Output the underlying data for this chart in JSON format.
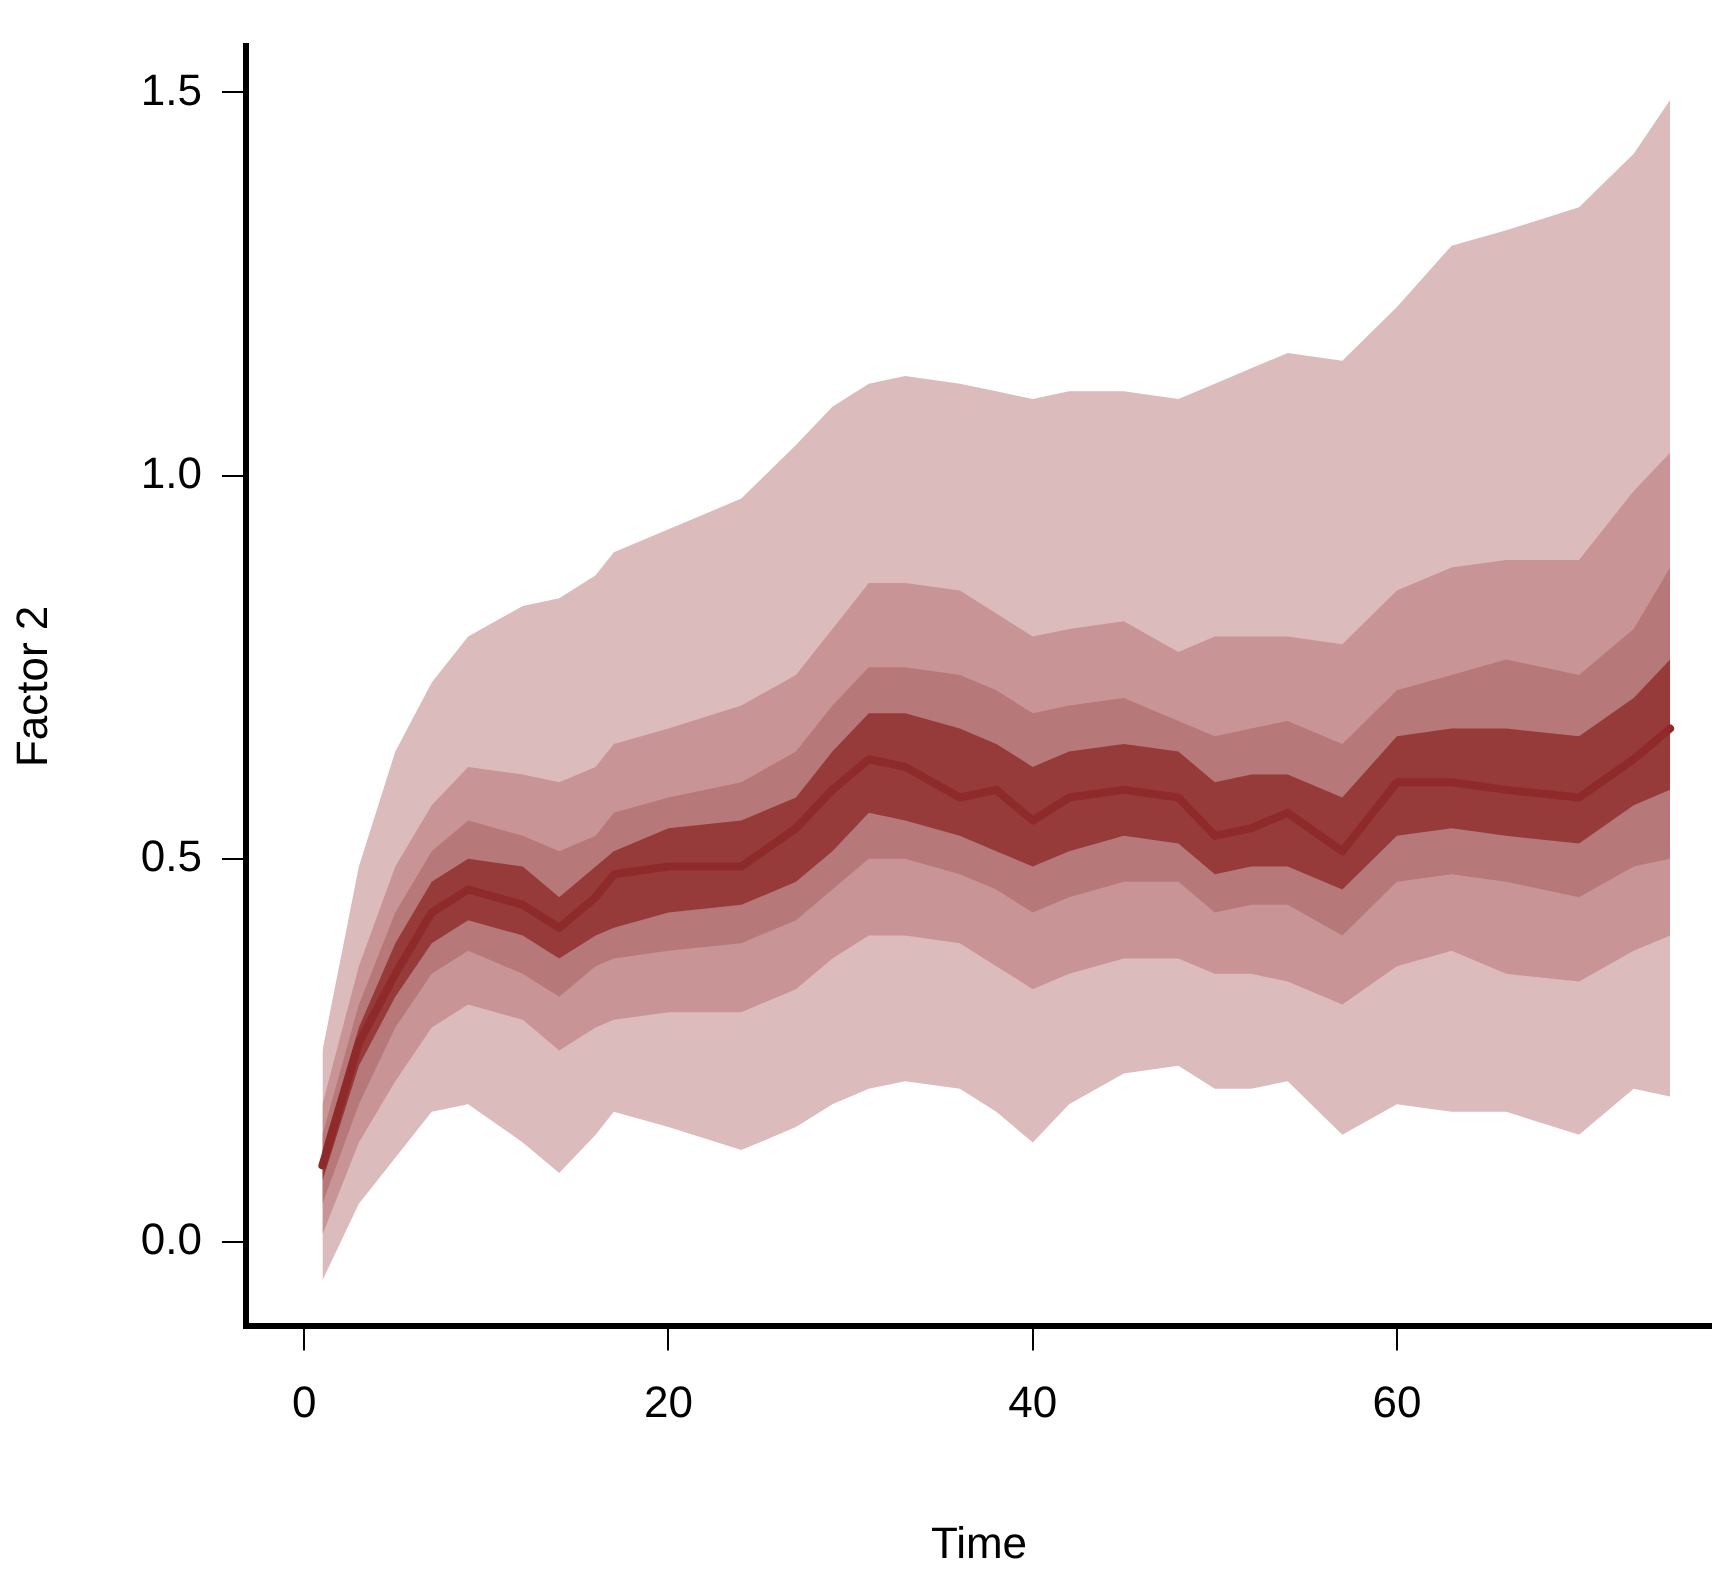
{
  "chart_data": {
    "type": "line",
    "xlabel": "Time",
    "ylabel": "Factor 2",
    "xlim": [
      -3.2,
      77.3
    ],
    "ylim": [
      -0.11,
      1.56
    ],
    "xticks": [
      0,
      20,
      40,
      60
    ],
    "yticks": [
      {
        "value": 0,
        "label": "0.0"
      },
      {
        "value": 0.5,
        "label": "0.5"
      },
      {
        "value": 1,
        "label": "1.0"
      },
      {
        "value": 1.5,
        "label": "1.5"
      }
    ],
    "x": [
      1,
      3,
      5,
      7,
      9,
      12,
      14,
      16,
      17,
      20,
      24,
      27,
      29,
      31,
      33,
      36,
      38,
      40,
      42,
      45,
      48,
      50,
      52,
      54,
      57,
      60,
      63,
      66,
      70,
      73,
      75
    ],
    "series": [
      {
        "color": "#8e2a2a",
        "values": [
          0.1,
          0.26,
          0.35,
          0.43,
          0.46,
          0.44,
          0.41,
          0.45,
          0.48,
          0.49,
          0.49,
          0.54,
          0.59,
          0.63,
          0.62,
          0.58,
          0.59,
          0.55,
          0.58,
          0.59,
          0.58,
          0.53,
          0.54,
          0.56,
          0.51,
          0.6,
          0.6,
          0.59,
          0.58,
          0.63,
          0.67
        ],
        "upper": [
          0.12,
          0.28,
          0.39,
          0.47,
          0.5,
          0.49,
          0.45,
          0.49,
          0.51,
          0.54,
          0.55,
          0.58,
          0.64,
          0.69,
          0.69,
          0.67,
          0.65,
          0.62,
          0.64,
          0.65,
          0.64,
          0.6,
          0.61,
          0.61,
          0.58,
          0.66,
          0.67,
          0.67,
          0.66,
          0.71,
          0.76
        ],
        "lower": [
          0.08,
          0.23,
          0.32,
          0.39,
          0.42,
          0.4,
          0.37,
          0.4,
          0.41,
          0.43,
          0.44,
          0.47,
          0.51,
          0.56,
          0.55,
          0.53,
          0.51,
          0.49,
          0.51,
          0.53,
          0.52,
          0.48,
          0.49,
          0.49,
          0.46,
          0.53,
          0.54,
          0.53,
          0.52,
          0.57,
          0.59
        ]
      },
      {
        "color": "#b77879",
        "values": [
          null,
          null,
          null,
          null,
          null,
          null,
          null,
          null,
          null,
          null,
          null,
          null,
          null,
          null,
          null,
          null,
          null,
          null,
          null,
          null,
          null,
          null,
          null,
          null,
          null,
          null,
          null,
          null,
          null,
          null,
          null
        ],
        "upper": [
          0.14,
          0.31,
          0.43,
          0.51,
          0.55,
          0.53,
          0.51,
          0.53,
          0.56,
          0.58,
          0.6,
          0.64,
          0.7,
          0.75,
          0.75,
          0.74,
          0.72,
          0.69,
          0.7,
          0.71,
          0.68,
          0.66,
          0.67,
          0.68,
          0.65,
          0.72,
          0.74,
          0.76,
          0.74,
          0.8,
          0.88
        ],
        "lower": [
          0.05,
          0.18,
          0.28,
          0.35,
          0.38,
          0.35,
          0.32,
          0.36,
          0.37,
          0.38,
          0.39,
          0.42,
          0.46,
          0.5,
          0.5,
          0.48,
          0.46,
          0.43,
          0.45,
          0.47,
          0.47,
          0.43,
          0.44,
          0.44,
          0.4,
          0.47,
          0.48,
          0.47,
          0.45,
          0.49,
          0.5
        ]
      },
      {
        "color": "#c99495",
        "values": [
          null,
          null,
          null,
          null,
          null,
          null,
          null,
          null,
          null,
          null,
          null,
          null,
          null,
          null,
          null,
          null,
          null,
          null,
          null,
          null,
          null,
          null,
          null,
          null,
          null,
          null,
          null,
          null,
          null,
          null,
          null
        ],
        "upper": [
          0.18,
          0.36,
          0.49,
          0.57,
          0.62,
          0.61,
          0.6,
          0.62,
          0.65,
          0.67,
          0.7,
          0.74,
          0.8,
          0.86,
          0.86,
          0.85,
          0.82,
          0.79,
          0.8,
          0.81,
          0.77,
          0.79,
          0.79,
          0.79,
          0.78,
          0.85,
          0.88,
          0.89,
          0.89,
          0.98,
          1.03
        ],
        "lower": [
          0.01,
          0.13,
          0.21,
          0.28,
          0.31,
          0.29,
          0.25,
          0.28,
          0.29,
          0.3,
          0.3,
          0.33,
          0.37,
          0.4,
          0.4,
          0.39,
          0.36,
          0.33,
          0.35,
          0.37,
          0.37,
          0.35,
          0.35,
          0.34,
          0.31,
          0.36,
          0.38,
          0.35,
          0.34,
          0.38,
          0.4
        ]
      },
      {
        "color": "#dcbbbd",
        "values": [
          null,
          null,
          null,
          null,
          null,
          null,
          null,
          null,
          null,
          null,
          null,
          null,
          null,
          null,
          null,
          null,
          null,
          null,
          null,
          null,
          null,
          null,
          null,
          null,
          null,
          null,
          null,
          null,
          null,
          null,
          null
        ],
        "upper": [
          0.25,
          0.49,
          0.64,
          0.73,
          0.79,
          0.83,
          0.84,
          0.87,
          0.9,
          0.93,
          0.97,
          1.04,
          1.09,
          1.12,
          1.13,
          1.12,
          1.11,
          1.1,
          1.11,
          1.11,
          1.1,
          1.12,
          1.14,
          1.16,
          1.15,
          1.22,
          1.3,
          1.32,
          1.35,
          1.42,
          1.49
        ],
        "lower": [
          -0.05,
          0.05,
          0.11,
          0.17,
          0.18,
          0.13,
          0.09,
          0.14,
          0.17,
          0.15,
          0.12,
          0.15,
          0.18,
          0.2,
          0.21,
          0.2,
          0.17,
          0.13,
          0.18,
          0.22,
          0.23,
          0.2,
          0.2,
          0.21,
          0.14,
          0.18,
          0.17,
          0.17,
          0.14,
          0.2,
          0.19
        ]
      }
    ]
  }
}
